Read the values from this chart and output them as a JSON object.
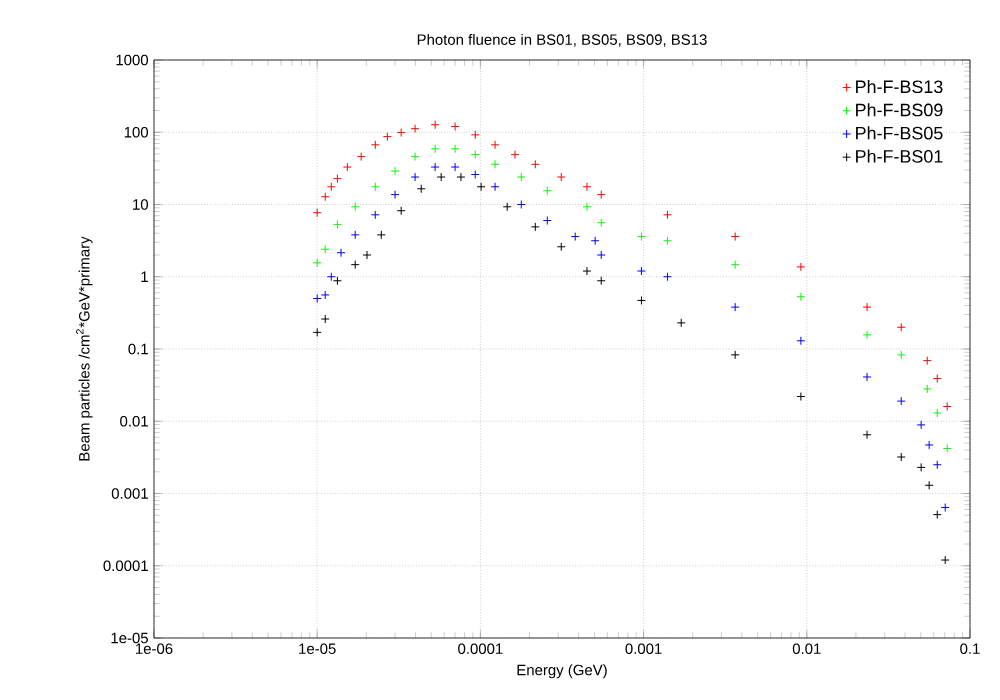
{
  "chart_data": {
    "type": "scatter",
    "title": "Photon fluence in BS01, BS05, BS09, BS13",
    "xlabel": "Energy (GeV)",
    "ylabel": "Beam particles /cm$^{2}$*GeV*primary",
    "log": "xy",
    "grid": true,
    "legend": "top right",
    "marker": "cross",
    "xlim": [
      1e-06,
      0.1
    ],
    "ylim": [
      1e-05,
      1000
    ],
    "xticks": [
      {
        "value": 1e-06,
        "label": "1e-06"
      },
      {
        "value": 1e-05,
        "label": "1e-05"
      },
      {
        "value": 0.0001,
        "label": "0.0001"
      },
      {
        "value": 0.001,
        "label": "0.001"
      },
      {
        "value": 0.01,
        "label": "0.01"
      },
      {
        "value": 0.1,
        "label": "0.1"
      }
    ],
    "yticks": [
      {
        "value": 1e-05,
        "label": "1e-05"
      },
      {
        "value": 0.0001,
        "label": "0.0001"
      },
      {
        "value": 0.001,
        "label": "0.001"
      },
      {
        "value": 0.01,
        "label": "0.01"
      },
      {
        "value": 0.1,
        "label": "0.1"
      },
      1,
      10,
      100,
      1000
    ],
    "series": [
      {
        "name": "Ph-F-BS13",
        "color": "#ff0000",
        "x": [
          1e-05,
          1.12e-05,
          1.22e-05,
          1.33e-05,
          1.53e-05,
          1.86e-05,
          2.27e-05,
          2.69e-05,
          3.27e-05,
          3.98e-05,
          5.28e-05,
          7e-05,
          9.3e-05,
          0.000123,
          0.000163,
          0.000217,
          0.000313,
          0.00045,
          0.00055,
          0.0014,
          0.00364,
          0.0092,
          0.0234,
          0.0379,
          0.0547,
          0.063,
          0.0725
        ],
        "values": [
          7.7,
          12.8,
          17.6,
          22.8,
          33,
          46,
          67,
          87,
          99,
          112,
          127,
          120,
          92,
          67,
          49,
          36,
          24,
          17.6,
          13.7,
          7.2,
          3.6,
          1.37,
          0.38,
          0.2,
          0.069,
          0.039,
          0.016
        ]
      },
      {
        "name": "Ph-F-BS09",
        "color": "#00ff00",
        "x": [
          1e-05,
          1.12e-05,
          1.33e-05,
          1.71e-05,
          2.27e-05,
          3e-05,
          3.98e-05,
          5.28e-05,
          7e-05,
          9.3e-05,
          0.000123,
          0.000178,
          0.000257,
          0.00045,
          0.00055,
          0.00097,
          0.0014,
          0.00364,
          0.0092,
          0.0234,
          0.0379,
          0.0547,
          0.063,
          0.0725
        ],
        "values": [
          1.56,
          2.4,
          5.3,
          9.3,
          17.6,
          29,
          46,
          59,
          59,
          49,
          36,
          24,
          15.5,
          9.3,
          5.6,
          3.6,
          3.15,
          1.47,
          0.53,
          0.157,
          0.083,
          0.028,
          0.013,
          0.0042
        ]
      },
      {
        "name": "Ph-F-BS05",
        "color": "#0000ff",
        "x": [
          1e-05,
          1.12e-05,
          1.22e-05,
          1.4e-05,
          1.71e-05,
          2.27e-05,
          3e-05,
          3.98e-05,
          5.28e-05,
          7e-05,
          9.3e-05,
          0.000123,
          0.000178,
          0.000257,
          0.000381,
          0.000505,
          0.00055,
          0.00097,
          0.0014,
          0.00364,
          0.0092,
          0.0234,
          0.0379,
          0.0502,
          0.0562,
          0.063,
          0.0705
        ],
        "values": [
          0.5,
          0.56,
          1.0,
          2.15,
          3.8,
          7.2,
          13.7,
          24,
          33,
          33,
          26,
          17.6,
          10,
          6,
          3.6,
          3.15,
          2.0,
          1.2,
          1.0,
          0.38,
          0.13,
          0.041,
          0.019,
          0.0089,
          0.0047,
          0.0025,
          0.00064
        ]
      },
      {
        "name": "Ph-F-BS01",
        "color": "#000000",
        "x": [
          1e-05,
          1.12e-05,
          1.33e-05,
          1.71e-05,
          2.02e-05,
          2.47e-05,
          3.27e-05,
          4.34e-05,
          5.75e-05,
          7.6e-05,
          0.000101,
          0.000146,
          0.000217,
          0.000313,
          0.00045,
          0.00055,
          0.00097,
          0.0017,
          0.00364,
          0.0092,
          0.0234,
          0.0379,
          0.0502,
          0.0562,
          0.063,
          0.0705
        ],
        "values": [
          0.17,
          0.26,
          0.88,
          1.47,
          2.0,
          3.8,
          8.2,
          16.5,
          24,
          24,
          17.6,
          9.3,
          4.9,
          2.6,
          1.2,
          0.88,
          0.47,
          0.23,
          0.083,
          0.022,
          0.0065,
          0.0032,
          0.0023,
          0.0013,
          0.00051,
          0.00012
        ]
      }
    ]
  }
}
